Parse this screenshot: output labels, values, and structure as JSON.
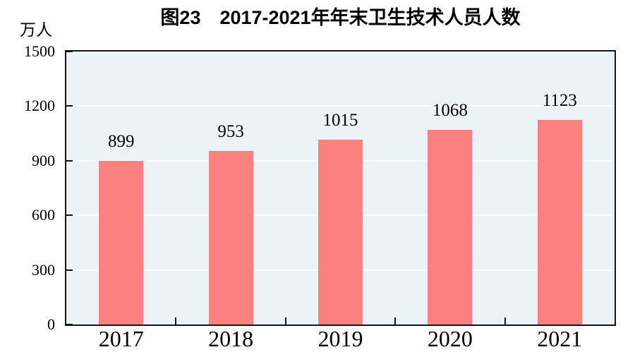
{
  "chart_data": {
    "type": "bar",
    "title": "图23　2017-2021年年末卫生技术人员人数",
    "unit": "万人",
    "categories": [
      "2017",
      "2018",
      "2019",
      "2020",
      "2021"
    ],
    "values": [
      899,
      953,
      1015,
      1068,
      1123
    ],
    "value_labels": [
      "899",
      "953",
      "1015",
      "1068",
      "1123"
    ],
    "ylim": [
      0,
      1500
    ],
    "yticks": [
      0,
      300,
      600,
      900,
      1200,
      1500
    ],
    "ytick_labels": [
      "0",
      "300",
      "600",
      "900",
      "1200",
      "1500"
    ],
    "grid_on": true,
    "legend": "none",
    "colors": {
      "bar": "#fb807f",
      "plot_background": "#ecf3f7",
      "gridline": "#ffffff",
      "axis_border": "#141414",
      "text": "#000000"
    }
  }
}
